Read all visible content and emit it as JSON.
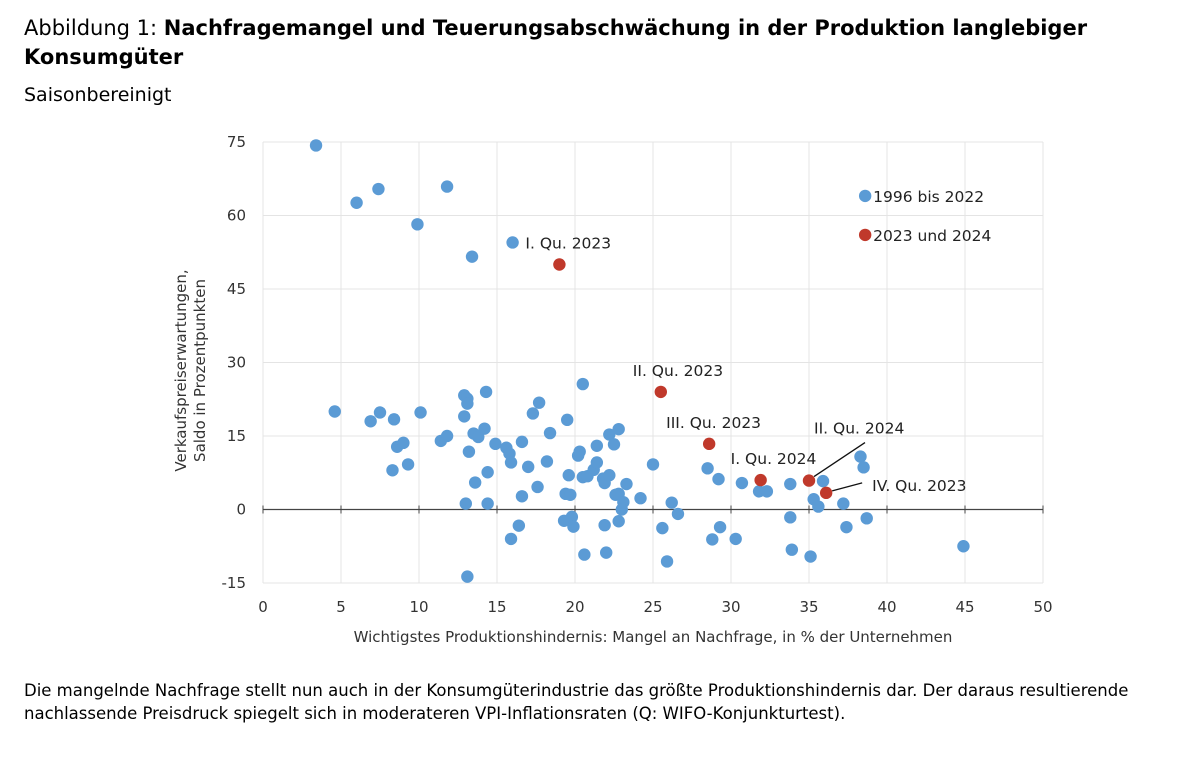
{
  "header": {
    "title_prefix": "Abbildung 1: ",
    "title_bold": "Nachfragemangel und Teuerungsabschwächung in der Produktion langlebiger Konsumgüter",
    "subtitle": "Saisonbereinigt"
  },
  "caption": "Die mangelnde Nachfrage stellt nun auch in der Konsumgüterindustrie das größte Produktionshindernis dar. Der daraus resultierende nachlassende Preisdruck spiegelt sich in moderateren VPI-Inflationsraten (Q: WIFO-Konjunkturtest).",
  "chart_data": {
    "type": "scatter",
    "xlabel": "Wichtigstes Produktionshindernis: Mangel an Nachfrage, in % der Unternehmen",
    "ylabel_lines": [
      "Verkaufspreiserwartungen,",
      "Saldo in Prozentpunkten"
    ],
    "xlim": [
      0,
      50
    ],
    "ylim": [
      -15,
      75
    ],
    "xticks": [
      "0",
      "5",
      "10",
      "15",
      "20",
      "25",
      "30",
      "35",
      "40",
      "45",
      "50"
    ],
    "yticks": [
      "-15",
      "0",
      "15",
      "30",
      "45",
      "60",
      "75"
    ],
    "grid": true,
    "legend_position": "top-right",
    "colors": {
      "series1": "#5b9bd5",
      "series2": "#c0392b"
    },
    "series": [
      {
        "name": "1996 bis 2022",
        "color": "#5b9bd5",
        "points": [
          [
            3.4,
            74.3
          ],
          [
            6.0,
            62.6
          ],
          [
            7.4,
            65.4
          ],
          [
            11.8,
            65.9
          ],
          [
            9.9,
            58.2
          ],
          [
            16.0,
            54.5
          ],
          [
            13.4,
            51.6
          ],
          [
            4.6,
            20.0
          ],
          [
            6.9,
            18.0
          ],
          [
            7.5,
            19.8
          ],
          [
            8.4,
            18.4
          ],
          [
            10.1,
            19.8
          ],
          [
            8.6,
            12.8
          ],
          [
            9.0,
            13.6
          ],
          [
            9.3,
            9.2
          ],
          [
            8.3,
            8.0
          ],
          [
            11.4,
            14.0
          ],
          [
            11.8,
            15.0
          ],
          [
            12.9,
            23.3
          ],
          [
            13.1,
            22.6
          ],
          [
            13.1,
            21.6
          ],
          [
            12.9,
            19.0
          ],
          [
            13.5,
            15.5
          ],
          [
            13.8,
            14.8
          ],
          [
            14.2,
            16.5
          ],
          [
            14.3,
            24.0
          ],
          [
            13.2,
            11.8
          ],
          [
            14.4,
            7.6
          ],
          [
            13.6,
            5.5
          ],
          [
            13.0,
            1.2
          ],
          [
            14.4,
            1.2
          ],
          [
            13.1,
            -13.7
          ],
          [
            14.9,
            13.4
          ],
          [
            15.6,
            12.6
          ],
          [
            15.8,
            11.4
          ],
          [
            15.9,
            9.6
          ],
          [
            16.6,
            13.8
          ],
          [
            17.0,
            8.7
          ],
          [
            17.3,
            19.6
          ],
          [
            17.7,
            21.8
          ],
          [
            18.4,
            15.6
          ],
          [
            18.2,
            9.8
          ],
          [
            17.6,
            4.6
          ],
          [
            16.6,
            2.7
          ],
          [
            15.9,
            -6.0
          ],
          [
            16.4,
            -3.3
          ],
          [
            19.5,
            18.3
          ],
          [
            20.5,
            25.6
          ],
          [
            20.2,
            11.0
          ],
          [
            20.3,
            11.8
          ],
          [
            19.6,
            7.0
          ],
          [
            19.4,
            3.2
          ],
          [
            19.7,
            3.0
          ],
          [
            19.3,
            -2.3
          ],
          [
            19.8,
            -1.5
          ],
          [
            19.9,
            -3.5
          ],
          [
            20.6,
            -9.2
          ],
          [
            20.5,
            6.6
          ],
          [
            20.8,
            6.8
          ],
          [
            21.2,
            8.1
          ],
          [
            21.4,
            9.6
          ],
          [
            21.4,
            13.0
          ],
          [
            21.8,
            6.3
          ],
          [
            21.9,
            5.4
          ],
          [
            22.2,
            15.3
          ],
          [
            22.5,
            13.3
          ],
          [
            22.8,
            16.4
          ],
          [
            22.2,
            7.0
          ],
          [
            22.6,
            3.0
          ],
          [
            22.8,
            3.2
          ],
          [
            23.1,
            1.5
          ],
          [
            23.0,
            0.0
          ],
          [
            23.3,
            5.2
          ],
          [
            24.2,
            2.3
          ],
          [
            22.8,
            -2.4
          ],
          [
            21.9,
            -3.2
          ],
          [
            22.0,
            -8.8
          ],
          [
            25.0,
            9.2
          ],
          [
            25.6,
            -3.8
          ],
          [
            25.9,
            -10.6
          ],
          [
            26.2,
            1.4
          ],
          [
            26.6,
            -0.9
          ],
          [
            28.5,
            8.4
          ],
          [
            29.2,
            6.2
          ],
          [
            29.3,
            -3.6
          ],
          [
            28.8,
            -6.1
          ],
          [
            30.3,
            -6.0
          ],
          [
            30.7,
            5.4
          ],
          [
            31.8,
            3.7
          ],
          [
            32.3,
            3.7
          ],
          [
            33.8,
            5.2
          ],
          [
            33.8,
            -1.6
          ],
          [
            33.9,
            -8.2
          ],
          [
            35.1,
            -9.6
          ],
          [
            35.3,
            2.1
          ],
          [
            35.6,
            0.6
          ],
          [
            35.9,
            5.8
          ],
          [
            37.2,
            1.2
          ],
          [
            37.4,
            -3.6
          ],
          [
            38.3,
            10.8
          ],
          [
            38.5,
            8.6
          ],
          [
            38.7,
            -1.8
          ],
          [
            44.9,
            -7.5
          ]
        ]
      },
      {
        "name": "2023 und 2024",
        "color": "#c0392b",
        "points": [
          [
            19.0,
            50.0
          ],
          [
            25.5,
            24.0
          ],
          [
            28.6,
            13.4
          ],
          [
            36.1,
            3.4
          ],
          [
            31.9,
            6.0
          ],
          [
            35.0,
            5.9
          ]
        ]
      }
    ],
    "annotations": [
      {
        "text": "I. Qu. 2023",
        "x": 19.0,
        "y": 50.0
      },
      {
        "text": "II. Qu. 2023",
        "x": 25.5,
        "y": 24.0
      },
      {
        "text": "III. Qu. 2023",
        "x": 28.6,
        "y": 13.4
      },
      {
        "text": "IV. Qu. 2023",
        "x": 36.1,
        "y": 3.4
      },
      {
        "text": "I. Qu. 2024",
        "x": 31.9,
        "y": 6.0
      },
      {
        "text": "II. Qu. 2024",
        "x": 35.0,
        "y": 5.9
      }
    ]
  }
}
